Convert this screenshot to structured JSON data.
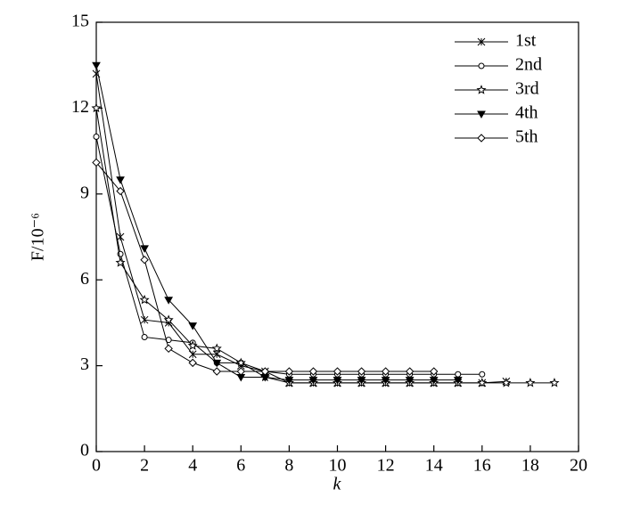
{
  "chart_data": {
    "type": "line",
    "xlabel": "k",
    "ylabel": "F/10⁻⁶",
    "xlim": [
      0,
      20
    ],
    "xticks": [
      0,
      2,
      4,
      6,
      8,
      10,
      12,
      14,
      16,
      18,
      20
    ],
    "ylim": [
      0,
      15
    ],
    "yticks": [
      0,
      3,
      6,
      9,
      12,
      15
    ],
    "legend": "upper right",
    "series": [
      {
        "name": "1st",
        "color": "#000000",
        "marker": "asterisk",
        "x": [
          0,
          1,
          2,
          3,
          4,
          5,
          6,
          7,
          8,
          9,
          10,
          11,
          12,
          13,
          14,
          15,
          16,
          17
        ],
        "values": [
          13.2,
          7.5,
          4.6,
          4.5,
          3.4,
          3.4,
          3.0,
          2.8,
          2.4,
          2.4,
          2.4,
          2.4,
          2.4,
          2.4,
          2.4,
          2.4,
          2.4,
          2.45
        ]
      },
      {
        "name": "2nd",
        "color": "#000000",
        "marker": "circle",
        "x": [
          0,
          1,
          2,
          3,
          4,
          5,
          6,
          7,
          8,
          9,
          10,
          11,
          12,
          13,
          14,
          15,
          16
        ],
        "values": [
          11.0,
          6.9,
          4.0,
          3.9,
          3.8,
          3.1,
          3.1,
          2.8,
          2.7,
          2.7,
          2.7,
          2.7,
          2.7,
          2.7,
          2.7,
          2.7,
          2.7
        ]
      },
      {
        "name": "3rd",
        "color": "#000000",
        "marker": "star",
        "x": [
          0,
          1,
          2,
          3,
          4,
          5,
          6,
          7,
          8,
          9,
          10,
          11,
          12,
          13,
          14,
          15,
          16,
          17,
          18,
          19
        ],
        "values": [
          12.0,
          6.6,
          5.3,
          4.6,
          3.7,
          3.6,
          3.1,
          2.6,
          2.4,
          2.4,
          2.4,
          2.4,
          2.4,
          2.4,
          2.4,
          2.4,
          2.4,
          2.4,
          2.4,
          2.4
        ]
      },
      {
        "name": "4th",
        "color": "#000000",
        "marker": "triangle-down",
        "x": [
          0,
          1,
          2,
          3,
          4,
          5,
          6,
          7,
          8,
          9,
          10,
          11,
          12,
          13,
          14,
          15
        ],
        "values": [
          13.5,
          9.5,
          7.1,
          5.3,
          4.4,
          3.1,
          2.6,
          2.6,
          2.5,
          2.5,
          2.5,
          2.5,
          2.5,
          2.5,
          2.5,
          2.5
        ]
      },
      {
        "name": "5th",
        "color": "#000000",
        "marker": "diamond",
        "x": [
          0,
          1,
          2,
          3,
          4,
          5,
          6,
          7,
          8,
          9,
          10,
          11,
          12,
          13,
          14
        ],
        "values": [
          10.1,
          9.1,
          6.7,
          3.6,
          3.1,
          2.8,
          2.8,
          2.8,
          2.8,
          2.8,
          2.8,
          2.8,
          2.8,
          2.8,
          2.8
        ]
      }
    ]
  }
}
